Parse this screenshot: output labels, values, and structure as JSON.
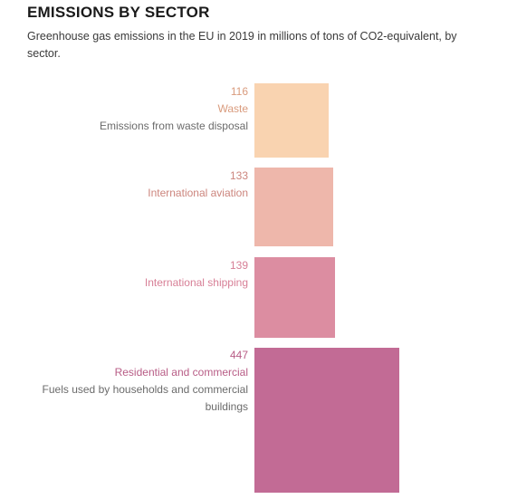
{
  "header": {
    "title": "EMISSIONS BY SECTOR",
    "subtitle": "Greenhouse gas emissions in the EU in 2019 in millions of tons of CO2-equivalent, by sector."
  },
  "chart_data": {
    "type": "bar",
    "title": "EMISSIONS BY SECTOR",
    "subtitle": "Greenhouse gas emissions in the EU in 2019 in millions of tons of CO2-equivalent, by sector.",
    "categories": [
      "Waste",
      "International aviation",
      "International shipping",
      "Residential and commercial"
    ],
    "values": [
      116,
      133,
      139,
      447
    ],
    "value_labels": [
      "116",
      "133",
      "139",
      "447"
    ],
    "descriptions": [
      "Emissions from waste disposal",
      "",
      "",
      "Fuels used by households and commercial buildings"
    ],
    "colors": [
      "#f9d3b0",
      "#eeb7ab",
      "#dc8da1",
      "#c26b95"
    ],
    "label_colors": [
      "#d99b7d",
      "#cc857d",
      "#d77f96",
      "#b85d86"
    ],
    "encoding": "square area proportional to value"
  }
}
